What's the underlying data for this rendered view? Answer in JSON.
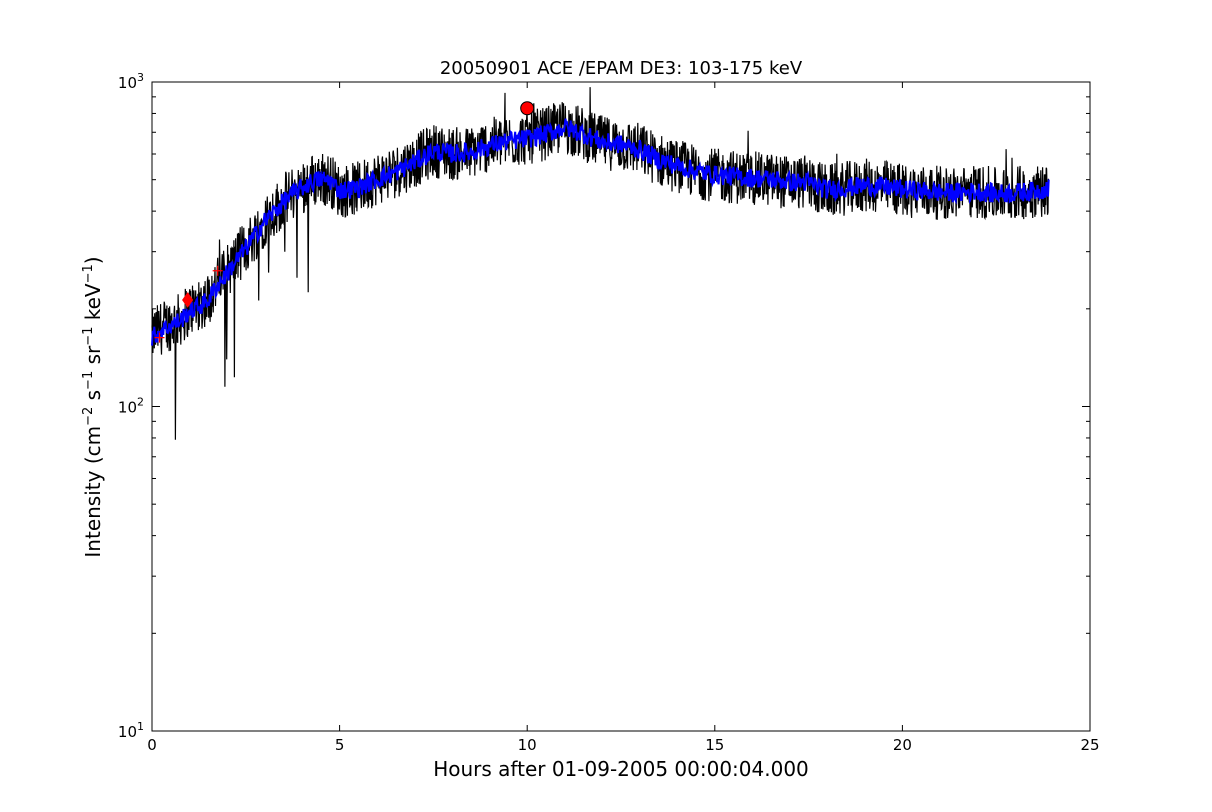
{
  "chart_data": {
    "type": "line",
    "title": "20050901 ACE /EPAM DE3: 103-175 keV",
    "xlabel": "Hours after 01-09-2005 00:00:04.000",
    "ylabel": {
      "prefix": "Intensity (cm",
      "exp1": "−2",
      "mid1": " s",
      "exp2": "−1",
      "mid2": " sr",
      "exp3": "−1",
      "mid3": " keV",
      "exp4": "−1",
      "suffix": ")"
    },
    "xlim": [
      0,
      25
    ],
    "ylim": [
      10,
      1000
    ],
    "yscale": "log",
    "xticks": [
      "0",
      "5",
      "10",
      "15",
      "20",
      "25"
    ],
    "yticks": [
      {
        "value": 10,
        "base": "10",
        "exp": "1"
      },
      {
        "value": 100,
        "base": "10",
        "exp": "2"
      },
      {
        "value": 1000,
        "base": "10",
        "exp": "3"
      }
    ],
    "grid": false,
    "colors": {
      "raw": "#000000",
      "smoothed": "#0000ff",
      "peak": "#ff0000",
      "marker": "#ff0000"
    },
    "series": [
      {
        "role": "raw",
        "x": [
          0.0,
          0.25,
          0.5,
          0.75,
          1.0,
          1.25,
          1.5,
          1.75,
          2.0,
          2.25,
          2.5,
          2.75,
          3.0,
          3.25,
          3.5,
          3.75,
          4.0,
          4.25,
          4.5,
          4.75,
          5.0,
          5.5,
          6.0,
          6.5,
          7.0,
          7.5,
          8.0,
          8.5,
          9.0,
          9.5,
          10.0,
          10.5,
          11.0,
          11.5,
          12.0,
          12.5,
          13.0,
          13.5,
          14.0,
          14.5,
          15.0,
          15.5,
          16.0,
          16.5,
          17.0,
          17.5,
          18.0,
          18.5,
          19.0,
          19.5,
          20.0,
          20.5,
          21.0,
          21.5,
          22.0,
          22.5,
          23.0,
          23.5,
          23.9
        ],
        "y": [
          165,
          175,
          180,
          185,
          200,
          205,
          215,
          240,
          260,
          285,
          310,
          340,
          375,
          400,
          430,
          455,
          475,
          495,
          505,
          500,
          460,
          470,
          505,
          530,
          570,
          615,
          600,
          605,
          640,
          660,
          670,
          695,
          730,
          690,
          650,
          640,
          620,
          575,
          550,
          530,
          515,
          510,
          505,
          500,
          490,
          490,
          460,
          470,
          480,
          475,
          465,
          460,
          455,
          455,
          460,
          450,
          455,
          460,
          470
        ]
      },
      {
        "role": "smoothed",
        "x": [
          0.0,
          0.25,
          0.5,
          0.75,
          1.0,
          1.25,
          1.5,
          1.75,
          2.0,
          2.25,
          2.5,
          2.75,
          3.0,
          3.25,
          3.5,
          3.75,
          4.0,
          4.25,
          4.5,
          4.75,
          5.0,
          5.5,
          6.0,
          6.5,
          7.0,
          7.5,
          8.0,
          8.5,
          9.0,
          9.5,
          10.0,
          10.5,
          11.0,
          11.5,
          12.0,
          12.5,
          13.0,
          13.5,
          14.0,
          14.5,
          15.0,
          15.5,
          16.0,
          16.5,
          17.0,
          17.5,
          18.0,
          18.5,
          19.0,
          19.5,
          20.0,
          20.5,
          21.0,
          21.5,
          22.0,
          22.5,
          23.0,
          23.5,
          23.9
        ],
        "y": [
          163,
          172,
          178,
          184,
          197,
          203,
          213,
          237,
          257,
          282,
          307,
          337,
          372,
          397,
          427,
          452,
          472,
          492,
          502,
          497,
          463,
          472,
          502,
          527,
          567,
          612,
          602,
          607,
          637,
          657,
          668,
          692,
          725,
          692,
          652,
          642,
          618,
          577,
          552,
          532,
          517,
          512,
          507,
          502,
          492,
          490,
          465,
          472,
          480,
          476,
          467,
          462,
          457,
          456,
          460,
          452,
          456,
          461,
          470
        ]
      }
    ],
    "markers": [
      {
        "role": "peak",
        "shape": "circle",
        "x": 10.0,
        "y": 830
      },
      {
        "role": "onset",
        "shape": "diamond",
        "x": 0.95,
        "y": 213
      },
      {
        "role": "tick-mark",
        "shape": "plus",
        "x": 1.75,
        "y": 262
      },
      {
        "role": "tick-mark",
        "shape": "plus",
        "x": 0.2,
        "y": 163
      }
    ]
  }
}
